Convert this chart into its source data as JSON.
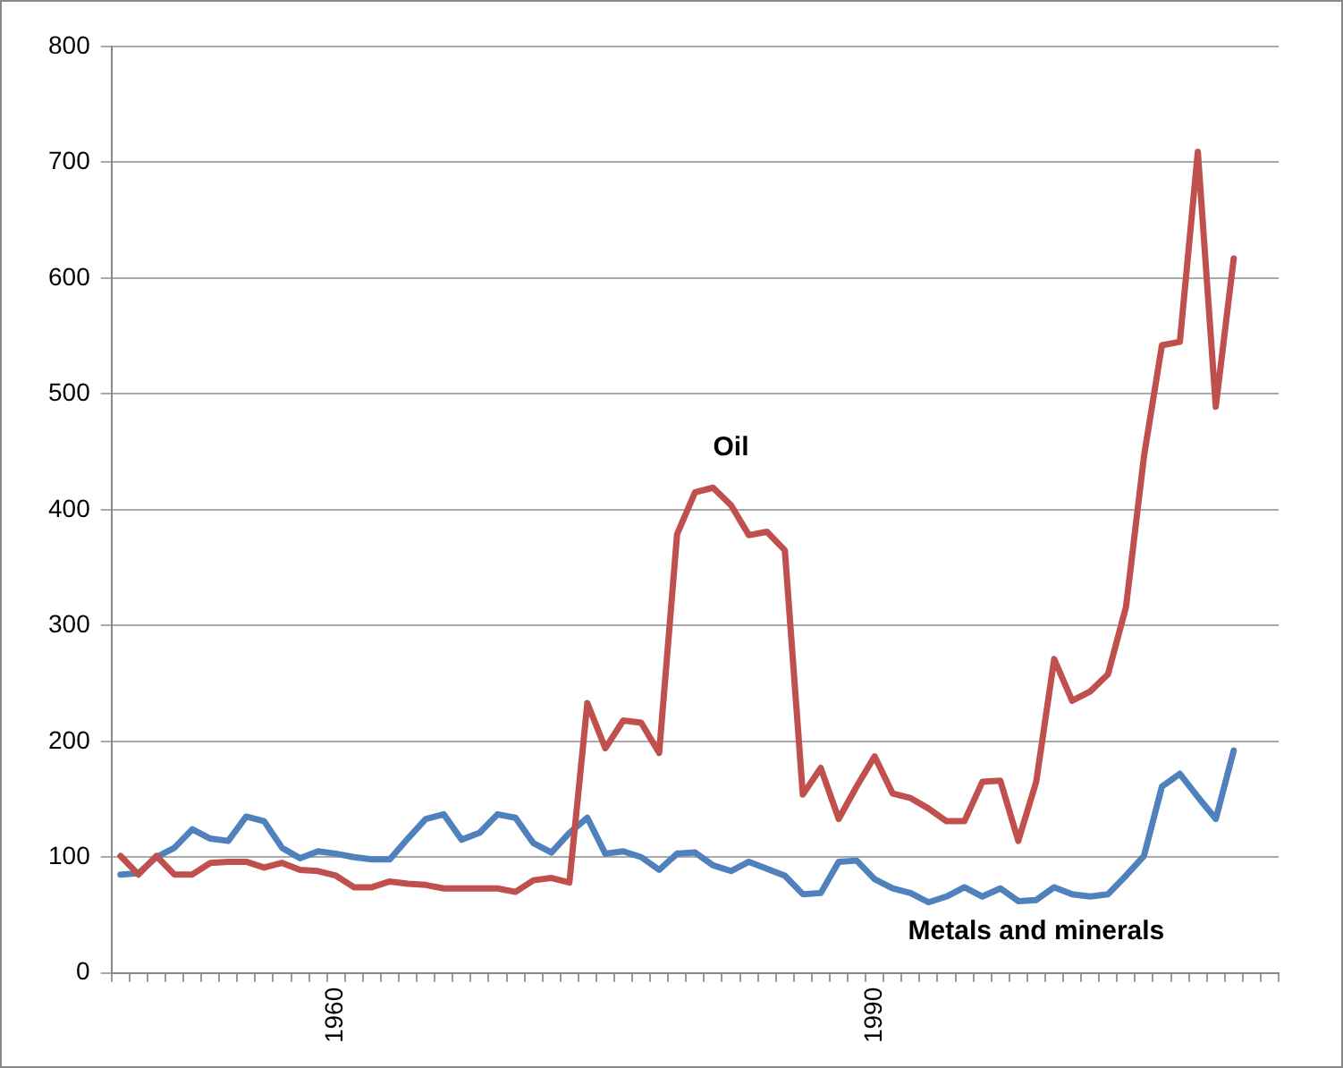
{
  "chart_data": {
    "type": "line",
    "categories": [
      null,
      null,
      null,
      null,
      null,
      null,
      null,
      null,
      null,
      null,
      null,
      null,
      "1960",
      null,
      null,
      null,
      null,
      null,
      null,
      null,
      null,
      null,
      null,
      null,
      null,
      null,
      null,
      null,
      null,
      null,
      null,
      null,
      null,
      null,
      null,
      null,
      null,
      null,
      null,
      null,
      null,
      null,
      "1990",
      null,
      null,
      null,
      null,
      null,
      null,
      null,
      null,
      null,
      null,
      null,
      null,
      null,
      null,
      null,
      null,
      null,
      null,
      null,
      null,
      null,
      null
    ],
    "series": [
      {
        "name": "Oil",
        "color": "#c0504d",
        "values": [
          101,
          85,
          101,
          85,
          85,
          95,
          96,
          96,
          91,
          95,
          89,
          88,
          84,
          74,
          74,
          79,
          77,
          76,
          73,
          73,
          73,
          73,
          70,
          80,
          82,
          78,
          233,
          194,
          218,
          216,
          190,
          379,
          415,
          419,
          404,
          378,
          381,
          365,
          154,
          177,
          133,
          161,
          187,
          155,
          151,
          142,
          131,
          131,
          165,
          166,
          114,
          165,
          271,
          235,
          243,
          258,
          316,
          446,
          542,
          545,
          709,
          489,
          617,
          null,
          null
        ]
      },
      {
        "name": "Metals and minerals",
        "color": "#4f81bd",
        "values": [
          85,
          86,
          100,
          108,
          124,
          116,
          114,
          135,
          131,
          108,
          99,
          105,
          103,
          100,
          98,
          98,
          116,
          133,
          137,
          115,
          121,
          137,
          134,
          112,
          104,
          121,
          134,
          103,
          105,
          100,
          89,
          103,
          104,
          93,
          88,
          96,
          90,
          84,
          68,
          69,
          96,
          97,
          81,
          73,
          69,
          61,
          66,
          74,
          66,
          73,
          62,
          63,
          74,
          68,
          66,
          68,
          84,
          101,
          161,
          172,
          152,
          133,
          192,
          null,
          null
        ]
      }
    ],
    "ylim": [
      0,
      800
    ],
    "yticks": [
      0,
      100,
      200,
      300,
      400,
      500,
      600,
      700,
      800
    ],
    "grid": "y",
    "legend": false,
    "marker": "none",
    "line_style": "solid"
  }
}
